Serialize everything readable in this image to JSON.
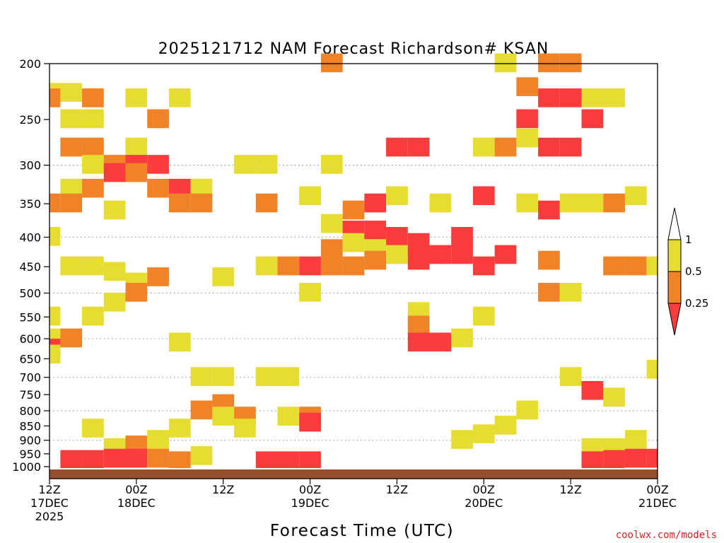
{
  "chart_data": {
    "type": "heatmap",
    "title": "2025121712 NAM Forecast Richardson# KSAN",
    "xlabel": "Forecast Time (UTC)",
    "ylabel": "",
    "credit": "coolwx.com/models",
    "y_scale": "pressure (hPa), reversed, non-linear",
    "ylim": [
      1000,
      200
    ],
    "x_range_hours": [
      0,
      84
    ],
    "y_ticks": [
      200,
      250,
      300,
      350,
      400,
      450,
      500,
      550,
      600,
      650,
      700,
      750,
      800,
      850,
      900,
      950,
      1000
    ],
    "x_ticks": [
      {
        "hour": 0,
        "lines": [
          "12Z",
          "17DEC",
          "2025"
        ]
      },
      {
        "hour": 12,
        "lines": [
          "00Z",
          "18DEC"
        ]
      },
      {
        "hour": 24,
        "lines": [
          "12Z"
        ]
      },
      {
        "hour": 36,
        "lines": [
          "00Z",
          "19DEC"
        ]
      },
      {
        "hour": 48,
        "lines": [
          "12Z"
        ]
      },
      {
        "hour": 60,
        "lines": [
          "00Z",
          "20DEC"
        ]
      },
      {
        "hour": 72,
        "lines": [
          "12Z"
        ]
      },
      {
        "hour": 84,
        "lines": [
          "00Z",
          "21DEC"
        ]
      }
    ],
    "grid": "dotted horizontal lines at 300, 400, 500, 600, 700, 800, 900 hPa",
    "legend": {
      "placement": "right",
      "labels": [
        "1",
        "0.5",
        "0.25"
      ],
      "bins": [
        {
          "range": "0.5-1",
          "color": "#e6dc32"
        },
        {
          "range": "0.25-0.5",
          "color": "#f08228"
        },
        {
          "range": "<0.25",
          "color": "#fa3c3c"
        }
      ]
    },
    "colors": {
      "yellow": "#e6dc32",
      "orange": "#f08228",
      "red": "#fa3c3c",
      "ground": "#96502d"
    },
    "series": [
      {
        "hour": 0,
        "ri": {
          "225": "y",
          "230": "o",
          "350": "o",
          "400": "y",
          "550": "y",
          "600": "y",
          "625": "r",
          "640": "y"
        }
      },
      {
        "hour": 3,
        "ri": {
          "225": "y",
          "250": "y",
          "280": "o",
          "330": "y",
          "350": "o",
          "450": "y",
          "600": "o",
          "975": "r"
        }
      },
      {
        "hour": 6,
        "ri": {
          "230": "o",
          "250": "y",
          "280": "o",
          "300": "y",
          "330": "o",
          "450": "y",
          "550": "y",
          "860": "y",
          "975": "r"
        }
      },
      {
        "hour": 9,
        "ri": {
          "300": "o",
          "310": "r",
          "360": "y",
          "460": "y",
          "520": "y",
          "930": "y",
          "970": "r"
        }
      },
      {
        "hour": 12,
        "ri": {
          "230": "y",
          "280": "y",
          "300": "r",
          "310": "o",
          "480": "y",
          "500": "o",
          "920": "o",
          "970": "r"
        }
      },
      {
        "hour": 15,
        "ri": {
          "250": "o",
          "300": "r",
          "330": "o",
          "470": "o",
          "900": "y",
          "970": "o"
        }
      },
      {
        "hour": 18,
        "ri": {
          "230": "y",
          "330": "r",
          "350": "o",
          "610": "y",
          "860": "y",
          "980": "o"
        }
      },
      {
        "hour": 21,
        "ri": {
          "330": "y",
          "350": "o",
          "700": "y",
          "800": "o",
          "960": "y"
        }
      },
      {
        "hour": 24,
        "ri": {
          "470": "y",
          "700": "y",
          "780": "o",
          "820": "y"
        }
      },
      {
        "hour": 27,
        "ri": {
          "300": "y",
          "820": "o",
          "860": "y"
        }
      },
      {
        "hour": 30,
        "ri": {
          "300": "y",
          "350": "o",
          "450": "y",
          "700": "y",
          "980": "r"
        }
      },
      {
        "hour": 33,
        "ri": {
          "450": "o",
          "700": "y",
          "820": "y",
          "980": "r"
        }
      },
      {
        "hour": 36,
        "ri": {
          "340": "y",
          "450": "r",
          "500": "y",
          "820": "o",
          "840": "r",
          "980": "r"
        }
      },
      {
        "hour": 39,
        "ri": {
          "200": "o",
          "300": "y",
          "380": "y",
          "420": "o",
          "450": "o"
        }
      },
      {
        "hour": 42,
        "ri": {
          "360": "o",
          "390": "r",
          "410": "y",
          "450": "o"
        }
      },
      {
        "hour": 45,
        "ri": {
          "350": "r",
          "390": "r",
          "420": "y",
          "440": "o"
        }
      },
      {
        "hour": 48,
        "ri": {
          "280": "r",
          "340": "y",
          "400": "r",
          "430": "y"
        }
      },
      {
        "hour": 51,
        "ri": {
          "280": "r",
          "410": "r",
          "440": "r",
          "540": "y",
          "570": "o",
          "610": "r"
        }
      },
      {
        "hour": 54,
        "ri": {
          "350": "y",
          "430": "r",
          "610": "r"
        }
      },
      {
        "hour": 57,
        "ri": {
          "400": "r",
          "430": "r",
          "600": "y",
          "900": "y"
        }
      },
      {
        "hour": 60,
        "ri": {
          "280": "y",
          "340": "r",
          "450": "r",
          "550": "y",
          "880": "y"
        }
      },
      {
        "hour": 63,
        "ri": {
          "200": "y",
          "280": "o",
          "430": "r",
          "850": "y"
        }
      },
      {
        "hour": 66,
        "ri": {
          "220": "o",
          "250": "r",
          "270": "y",
          "350": "y",
          "800": "y"
        }
      },
      {
        "hour": 69,
        "ri": {
          "200": "o",
          "230": "r",
          "280": "r",
          "360": "r",
          "440": "o",
          "500": "o"
        }
      },
      {
        "hour": 72,
        "ri": {
          "200": "o",
          "230": "r",
          "280": "r",
          "350": "y",
          "500": "y",
          "700": "y"
        }
      },
      {
        "hour": 75,
        "ri": {
          "230": "y",
          "250": "r",
          "350": "y",
          "740": "r",
          "930": "y",
          "980": "r"
        }
      },
      {
        "hour": 78,
        "ri": {
          "230": "y",
          "350": "o",
          "450": "o",
          "760": "y",
          "930": "y",
          "975": "r"
        }
      },
      {
        "hour": 81,
        "ri": {
          "340": "y",
          "450": "o",
          "900": "y",
          "970": "r"
        }
      },
      {
        "hour": 84,
        "ri": {
          "450": "y",
          "680": "y",
          "970": "r"
        }
      }
    ]
  }
}
